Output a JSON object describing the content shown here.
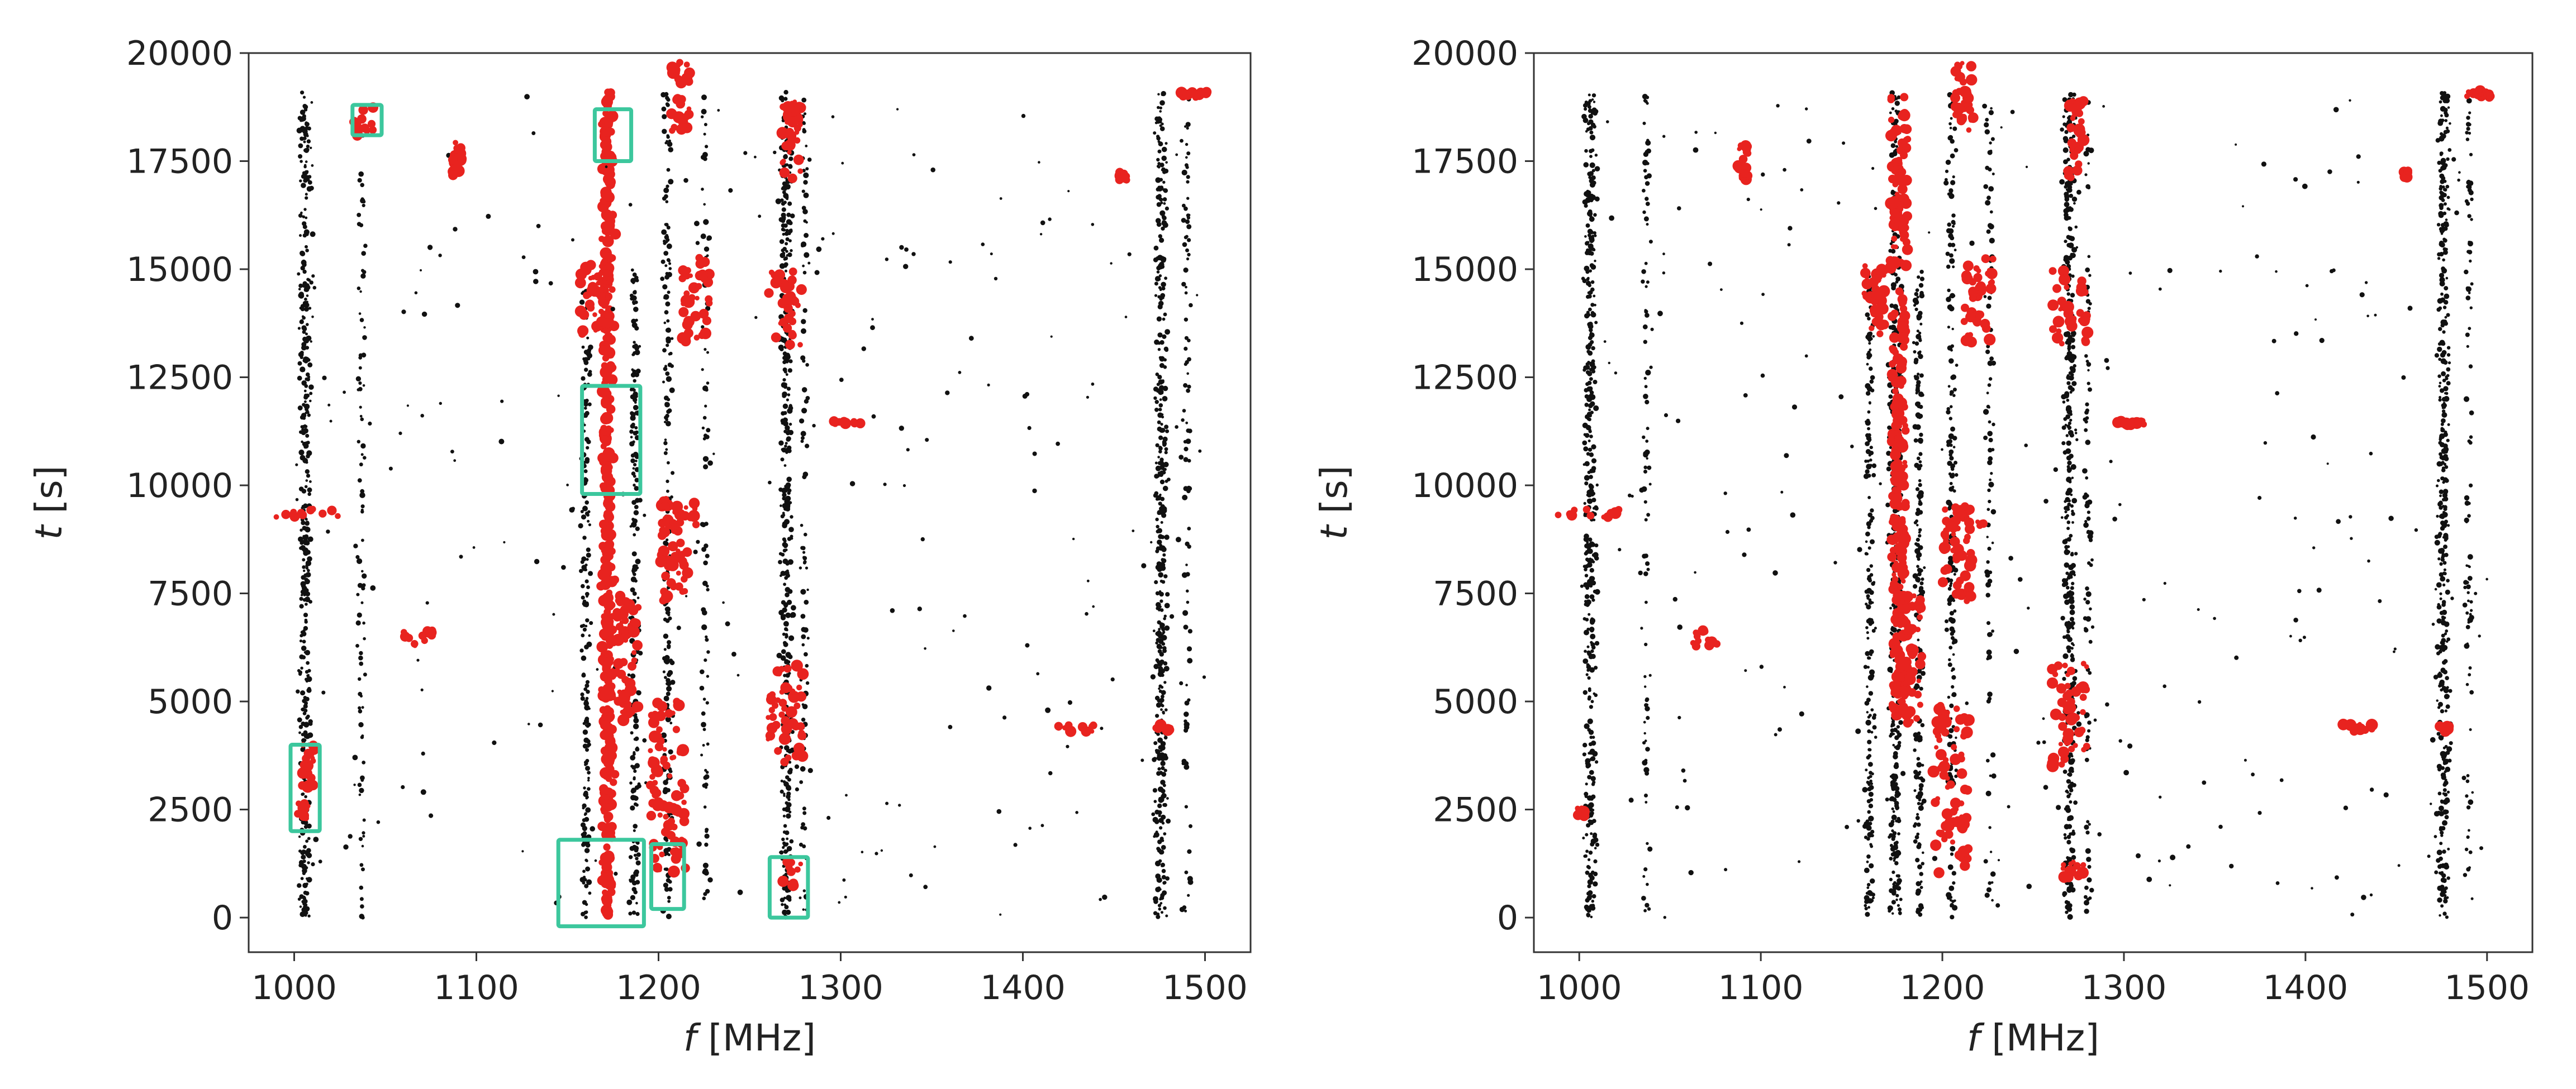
{
  "figure": {
    "panels": [
      "left",
      "right"
    ]
  },
  "colors": {
    "rfi_black": "#111111",
    "rfi_red": "#e8231f",
    "box": "#3cc79d",
    "axis": "#333333"
  },
  "chart_data": [
    {
      "type": "scatter",
      "panel": "left",
      "title": "",
      "xlabel_italic": "f",
      "xlabel_unit": " [MHz]",
      "ylabel_italic": "t",
      "ylabel_unit": " [s]",
      "xlim": [
        975,
        1525
      ],
      "ylim": [
        -800,
        20000
      ],
      "xticks": [
        1000,
        1100,
        1200,
        1300,
        1400,
        1500
      ],
      "yticks": [
        0,
        2500,
        5000,
        7500,
        10000,
        12500,
        15000,
        17500,
        20000
      ],
      "bands": [
        {
          "f": 1006,
          "t0": 0,
          "t1": 19100,
          "density": "heavy",
          "color": "black"
        },
        {
          "f": 1037,
          "t0": 0,
          "t1": 19100,
          "density": "light",
          "color": "black"
        },
        {
          "f": 1160,
          "t0": 0,
          "t1": 15000,
          "density": "medium",
          "color": "black"
        },
        {
          "f": 1172,
          "t0": 0,
          "t1": 19100,
          "density": "heavy",
          "color": "red"
        },
        {
          "f": 1187,
          "t0": 0,
          "t1": 15000,
          "density": "medium",
          "color": "black"
        },
        {
          "f": 1205,
          "t0": 0,
          "t1": 19100,
          "density": "medium",
          "color": "black"
        },
        {
          "f": 1226,
          "t0": 0,
          "t1": 19100,
          "density": "light",
          "color": "black"
        },
        {
          "f": 1270,
          "t0": 0,
          "t1": 19100,
          "density": "heavy",
          "color": "black"
        },
        {
          "f": 1280,
          "t0": 0,
          "t1": 19100,
          "density": "light",
          "color": "black"
        },
        {
          "f": 1476,
          "t0": 0,
          "t1": 19100,
          "density": "heavy",
          "color": "black"
        },
        {
          "f": 1490,
          "t0": 0,
          "t1": 19100,
          "density": "light",
          "color": "black"
        }
      ],
      "red_clusters": [
        {
          "f": 1038,
          "t": 18400,
          "df": 6,
          "dt": 350
        },
        {
          "f": 1090,
          "t": 17500,
          "df": 3,
          "dt": 500
        },
        {
          "f": 1006,
          "t": 9350,
          "df": 18,
          "dt": 100
        },
        {
          "f": 1068,
          "t": 6450,
          "df": 8,
          "dt": 200
        },
        {
          "f": 1429,
          "t": 4400,
          "df": 10,
          "dt": 100
        },
        {
          "f": 1008,
          "t": 3500,
          "df": 5,
          "dt": 500
        },
        {
          "f": 1005,
          "t": 2500,
          "df": 3,
          "dt": 200
        },
        {
          "f": 1212,
          "t": 19000,
          "df": 5,
          "dt": 800
        },
        {
          "f": 1273,
          "t": 18000,
          "df": 5,
          "dt": 900
        },
        {
          "f": 1220,
          "t": 14300,
          "df": 8,
          "dt": 1000
        },
        {
          "f": 1163,
          "t": 14300,
          "df": 6,
          "dt": 800
        },
        {
          "f": 1270,
          "t": 14100,
          "df": 10,
          "dt": 900
        },
        {
          "f": 1208,
          "t": 8500,
          "df": 8,
          "dt": 1200
        },
        {
          "f": 1213,
          "t": 9300,
          "df": 10,
          "dt": 300
        },
        {
          "f": 1205,
          "t": 3000,
          "df": 10,
          "dt": 2000
        },
        {
          "f": 1270,
          "t": 4700,
          "df": 10,
          "dt": 1200
        },
        {
          "f": 1272,
          "t": 1000,
          "df": 8,
          "dt": 300
        },
        {
          "f": 1183,
          "t": 6000,
          "df": 6,
          "dt": 1500
        },
        {
          "f": 1303,
          "t": 11450,
          "df": 8,
          "dt": 40
        },
        {
          "f": 1477,
          "t": 4400,
          "df": 4,
          "dt": 100
        },
        {
          "f": 1494,
          "t": 19050,
          "df": 8,
          "dt": 80
        },
        {
          "f": 1455,
          "t": 17200,
          "df": 2,
          "dt": 150
        }
      ],
      "boxes": [
        {
          "f0": 1032,
          "f1": 1048,
          "t0": 18100,
          "t1": 18800
        },
        {
          "f0": 1165,
          "f1": 1185,
          "t0": 17500,
          "t1": 18700
        },
        {
          "f0": 1158,
          "f1": 1190,
          "t0": 9800,
          "t1": 12300
        },
        {
          "f0": 998,
          "f1": 1014,
          "t0": 2000,
          "t1": 4000
        },
        {
          "f0": 1145,
          "f1": 1192,
          "t0": -200,
          "t1": 1800
        },
        {
          "f0": 1196,
          "f1": 1214,
          "t0": 200,
          "t1": 1700
        },
        {
          "f0": 1261,
          "f1": 1282,
          "t0": 0,
          "t1": 1400
        }
      ]
    },
    {
      "type": "scatter",
      "panel": "right",
      "title": "",
      "xlabel_italic": "f",
      "xlabel_unit": " [MHz]",
      "ylabel_italic": "t",
      "ylabel_unit": " [s]",
      "xlim": [
        975,
        1525
      ],
      "ylim": [
        -800,
        20000
      ],
      "xticks": [
        1000,
        1100,
        1200,
        1300,
        1400,
        1500
      ],
      "yticks": [
        0,
        2500,
        5000,
        7500,
        10000,
        12500,
        15000,
        17500,
        20000
      ],
      "bands": [
        {
          "f": 1006,
          "t0": 0,
          "t1": 19100,
          "density": "heavy",
          "color": "black"
        },
        {
          "f": 1037,
          "t0": 0,
          "t1": 19100,
          "density": "light",
          "color": "black"
        },
        {
          "f": 1160,
          "t0": 0,
          "t1": 15000,
          "density": "medium",
          "color": "black"
        },
        {
          "f": 1174,
          "t0": 0,
          "t1": 19100,
          "density": "heavy",
          "color": "black"
        },
        {
          "f": 1187,
          "t0": 0,
          "t1": 15000,
          "density": "medium",
          "color": "black"
        },
        {
          "f": 1205,
          "t0": 0,
          "t1": 19100,
          "density": "medium",
          "color": "black"
        },
        {
          "f": 1226,
          "t0": 0,
          "t1": 19100,
          "density": "light",
          "color": "black"
        },
        {
          "f": 1270,
          "t0": 0,
          "t1": 19100,
          "density": "heavy",
          "color": "black"
        },
        {
          "f": 1280,
          "t0": 0,
          "t1": 19100,
          "density": "light",
          "color": "black"
        },
        {
          "f": 1476,
          "t0": 0,
          "t1": 19100,
          "density": "heavy",
          "color": "black"
        },
        {
          "f": 1490,
          "t0": 0,
          "t1": 19100,
          "density": "light",
          "color": "black"
        }
      ],
      "red_clusters": [
        {
          "f": 1090,
          "t": 17500,
          "df": 3,
          "dt": 500
        },
        {
          "f": 1006,
          "t": 9350,
          "df": 18,
          "dt": 100
        },
        {
          "f": 1068,
          "t": 6450,
          "df": 8,
          "dt": 200
        },
        {
          "f": 1429,
          "t": 4400,
          "df": 10,
          "dt": 100
        },
        {
          "f": 1001,
          "t": 2450,
          "df": 2,
          "dt": 100
        },
        {
          "f": 1176,
          "t": 17000,
          "df": 5,
          "dt": 2000
        },
        {
          "f": 1176,
          "t": 12000,
          "df": 4,
          "dt": 2500
        },
        {
          "f": 1176,
          "t": 7000,
          "df": 4,
          "dt": 2500
        },
        {
          "f": 1212,
          "t": 19000,
          "df": 5,
          "dt": 800
        },
        {
          "f": 1273,
          "t": 18000,
          "df": 5,
          "dt": 900
        },
        {
          "f": 1220,
          "t": 14300,
          "df": 8,
          "dt": 1000
        },
        {
          "f": 1163,
          "t": 14300,
          "df": 6,
          "dt": 800
        },
        {
          "f": 1270,
          "t": 14100,
          "df": 10,
          "dt": 900
        },
        {
          "f": 1208,
          "t": 8500,
          "df": 8,
          "dt": 1200
        },
        {
          "f": 1213,
          "t": 9300,
          "df": 10,
          "dt": 300
        },
        {
          "f": 1205,
          "t": 3000,
          "df": 10,
          "dt": 2000
        },
        {
          "f": 1270,
          "t": 4700,
          "df": 10,
          "dt": 1200
        },
        {
          "f": 1272,
          "t": 1100,
          "df": 6,
          "dt": 200
        },
        {
          "f": 1183,
          "t": 6000,
          "df": 6,
          "dt": 1500
        },
        {
          "f": 1303,
          "t": 11450,
          "df": 8,
          "dt": 40
        },
        {
          "f": 1477,
          "t": 4400,
          "df": 4,
          "dt": 100
        },
        {
          "f": 1494,
          "t": 19050,
          "df": 8,
          "dt": 80
        },
        {
          "f": 1455,
          "t": 17200,
          "df": 2,
          "dt": 150
        }
      ],
      "boxes": []
    }
  ]
}
